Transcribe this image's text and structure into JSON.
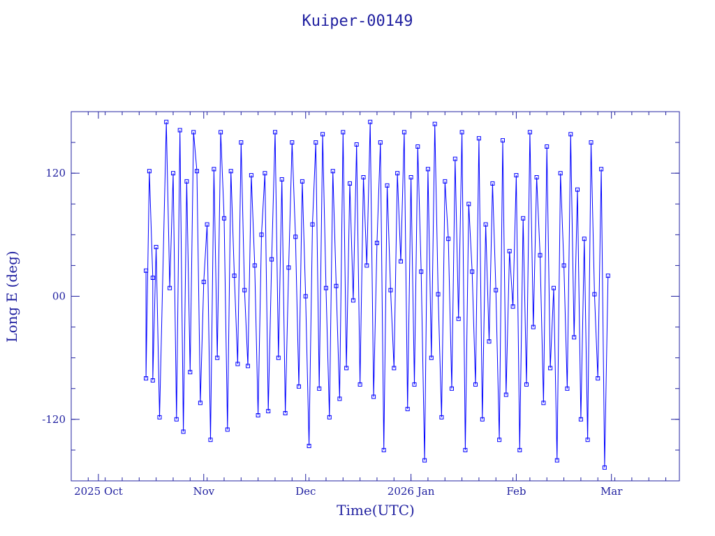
{
  "chart_data": {
    "type": "scatter",
    "title": "Kuiper-00149",
    "xlabel": "Time(UTC)",
    "ylabel": "Long E (deg)",
    "x_tick_labels": [
      "2025 Oct",
      "Nov",
      "Dec",
      "2026 Jan",
      "Feb",
      "Mar"
    ],
    "x_tick_dates": [
      "2025-10-01",
      "2025-11-01",
      "2025-12-01",
      "2026-01-01",
      "2026-02-01",
      "2026-03-01"
    ],
    "xlim": [
      "2025-09-23",
      "2026-03-21"
    ],
    "y_ticks": [
      120,
      0,
      -120
    ],
    "y_tick_labels": [
      "120",
      "00",
      "-120"
    ],
    "ylim": [
      -180,
      180
    ],
    "grid": false,
    "marker": "square",
    "color": "#0000ff",
    "axis_color": "#2020a0",
    "series": [
      {
        "points": [
          [
            "2025-10-15",
            25
          ],
          [
            "2025-10-15",
            -80
          ],
          [
            "2025-10-16",
            122
          ],
          [
            "2025-10-17",
            18
          ],
          [
            "2025-10-17",
            -82
          ],
          [
            "2025-10-18",
            48
          ],
          [
            "2025-10-19",
            -118
          ],
          [
            "2025-10-21",
            170
          ],
          [
            "2025-10-22",
            8
          ],
          [
            "2025-10-23",
            120
          ],
          [
            "2025-10-24",
            -120
          ],
          [
            "2025-10-25",
            162
          ],
          [
            "2025-10-26",
            -132
          ],
          [
            "2025-10-27",
            112
          ],
          [
            "2025-10-28",
            -74
          ],
          [
            "2025-10-29",
            160
          ],
          [
            "2025-10-30",
            122
          ],
          [
            "2025-10-31",
            -104
          ],
          [
            "2025-11-01",
            14
          ],
          [
            "2025-11-02",
            70
          ],
          [
            "2025-11-03",
            -140
          ],
          [
            "2025-11-04",
            124
          ],
          [
            "2025-11-05",
            -60
          ],
          [
            "2025-11-06",
            160
          ],
          [
            "2025-11-07",
            76
          ],
          [
            "2025-11-08",
            -130
          ],
          [
            "2025-11-09",
            122
          ],
          [
            "2025-11-10",
            20
          ],
          [
            "2025-11-11",
            -66
          ],
          [
            "2025-11-12",
            150
          ],
          [
            "2025-11-13",
            6
          ],
          [
            "2025-11-14",
            -68
          ],
          [
            "2025-11-15",
            118
          ],
          [
            "2025-11-16",
            30
          ],
          [
            "2025-11-17",
            -116
          ],
          [
            "2025-11-18",
            60
          ],
          [
            "2025-11-19",
            120
          ],
          [
            "2025-11-20",
            -112
          ],
          [
            "2025-11-21",
            36
          ],
          [
            "2025-11-22",
            160
          ],
          [
            "2025-11-23",
            -60
          ],
          [
            "2025-11-24",
            114
          ],
          [
            "2025-11-25",
            -114
          ],
          [
            "2025-11-26",
            28
          ],
          [
            "2025-11-27",
            150
          ],
          [
            "2025-11-28",
            58
          ],
          [
            "2025-11-29",
            -88
          ],
          [
            "2025-11-30",
            112
          ],
          [
            "2025-12-01",
            0
          ],
          [
            "2025-12-02",
            -146
          ],
          [
            "2025-12-03",
            70
          ],
          [
            "2025-12-04",
            150
          ],
          [
            "2025-12-05",
            -90
          ],
          [
            "2025-12-06",
            158
          ],
          [
            "2025-12-07",
            8
          ],
          [
            "2025-12-08",
            -118
          ],
          [
            "2025-12-09",
            122
          ],
          [
            "2025-12-10",
            10
          ],
          [
            "2025-12-11",
            -100
          ],
          [
            "2025-12-12",
            160
          ],
          [
            "2025-12-13",
            -70
          ],
          [
            "2025-12-14",
            110
          ],
          [
            "2025-12-15",
            -4
          ],
          [
            "2025-12-16",
            148
          ],
          [
            "2025-12-17",
            -86
          ],
          [
            "2025-12-18",
            116
          ],
          [
            "2025-12-19",
            30
          ],
          [
            "2025-12-20",
            170
          ],
          [
            "2025-12-21",
            -98
          ],
          [
            "2025-12-22",
            52
          ],
          [
            "2025-12-23",
            150
          ],
          [
            "2025-12-24",
            -150
          ],
          [
            "2025-12-25",
            108
          ],
          [
            "2025-12-26",
            6
          ],
          [
            "2025-12-27",
            -70
          ],
          [
            "2025-12-28",
            120
          ],
          [
            "2025-12-29",
            34
          ],
          [
            "2025-12-30",
            160
          ],
          [
            "2025-12-31",
            -110
          ],
          [
            "2026-01-01",
            116
          ],
          [
            "2026-01-02",
            -86
          ],
          [
            "2026-01-03",
            146
          ],
          [
            "2026-01-04",
            24
          ],
          [
            "2026-01-05",
            -160
          ],
          [
            "2026-01-06",
            124
          ],
          [
            "2026-01-07",
            -60
          ],
          [
            "2026-01-08",
            168
          ],
          [
            "2026-01-09",
            2
          ],
          [
            "2026-01-10",
            -118
          ],
          [
            "2026-01-11",
            112
          ],
          [
            "2026-01-12",
            56
          ],
          [
            "2026-01-13",
            -90
          ],
          [
            "2026-01-14",
            134
          ],
          [
            "2026-01-15",
            -22
          ],
          [
            "2026-01-16",
            160
          ],
          [
            "2026-01-17",
            -150
          ],
          [
            "2026-01-18",
            90
          ],
          [
            "2026-01-19",
            24
          ],
          [
            "2026-01-20",
            -86
          ],
          [
            "2026-01-21",
            154
          ],
          [
            "2026-01-22",
            -120
          ],
          [
            "2026-01-23",
            70
          ],
          [
            "2026-01-24",
            -44
          ],
          [
            "2026-01-25",
            110
          ],
          [
            "2026-01-26",
            6
          ],
          [
            "2026-01-27",
            -140
          ],
          [
            "2026-01-28",
            152
          ],
          [
            "2026-01-29",
            -96
          ],
          [
            "2026-01-30",
            44
          ],
          [
            "2026-01-31",
            -10
          ],
          [
            "2026-02-01",
            118
          ],
          [
            "2026-02-02",
            -150
          ],
          [
            "2026-02-03",
            76
          ],
          [
            "2026-02-04",
            -86
          ],
          [
            "2026-02-05",
            160
          ],
          [
            "2026-02-06",
            -30
          ],
          [
            "2026-02-07",
            116
          ],
          [
            "2026-02-08",
            40
          ],
          [
            "2026-02-09",
            -104
          ],
          [
            "2026-02-10",
            146
          ],
          [
            "2026-02-11",
            -70
          ],
          [
            "2026-02-12",
            8
          ],
          [
            "2026-02-13",
            -160
          ],
          [
            "2026-02-14",
            120
          ],
          [
            "2026-02-15",
            30
          ],
          [
            "2026-02-16",
            -90
          ],
          [
            "2026-02-17",
            158
          ],
          [
            "2026-02-18",
            -40
          ],
          [
            "2026-02-19",
            104
          ],
          [
            "2026-02-20",
            -120
          ],
          [
            "2026-02-21",
            56
          ],
          [
            "2026-02-22",
            -140
          ],
          [
            "2026-02-23",
            150
          ],
          [
            "2026-02-24",
            2
          ],
          [
            "2026-02-25",
            -80
          ],
          [
            "2026-02-26",
            124
          ],
          [
            "2026-02-27",
            -167
          ],
          [
            "2026-02-28",
            20
          ]
        ]
      }
    ]
  }
}
